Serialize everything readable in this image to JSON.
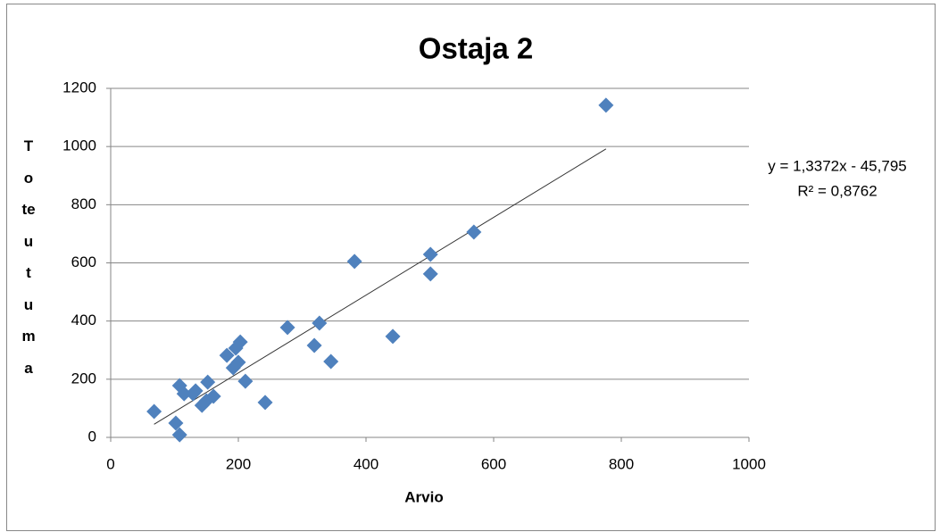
{
  "chart_data": {
    "type": "scatter",
    "title": "Ostaja 2",
    "x_label": "Arvio",
    "y_label": "Toteutuma",
    "color": "#4f81bd",
    "x": [
      68,
      102,
      108,
      108,
      115,
      129,
      133,
      143,
      150,
      152,
      161,
      182,
      192,
      196,
      200,
      203,
      211,
      242,
      277,
      319,
      327,
      345,
      382,
      442,
      501,
      501,
      569,
      776
    ],
    "values": [
      89,
      49,
      9,
      178,
      150,
      150,
      160,
      110,
      126,
      190,
      141,
      282,
      239,
      307,
      258,
      328,
      193,
      120,
      378,
      316,
      393,
      261,
      605,
      347,
      629,
      562,
      706,
      1142
    ],
    "xlim": [
      0,
      1000
    ],
    "xticks": [
      0,
      200,
      400,
      600,
      800,
      1000
    ],
    "ylim": [
      0,
      1200
    ],
    "yticks": [
      0,
      200,
      400,
      600,
      800,
      1000,
      1200
    ],
    "grid": true,
    "trendline": {
      "slope": 1.3372,
      "intercept": -45.795,
      "equation": "y = 1,3372x - 45,795",
      "r2": "R² = 0,8762"
    }
  }
}
